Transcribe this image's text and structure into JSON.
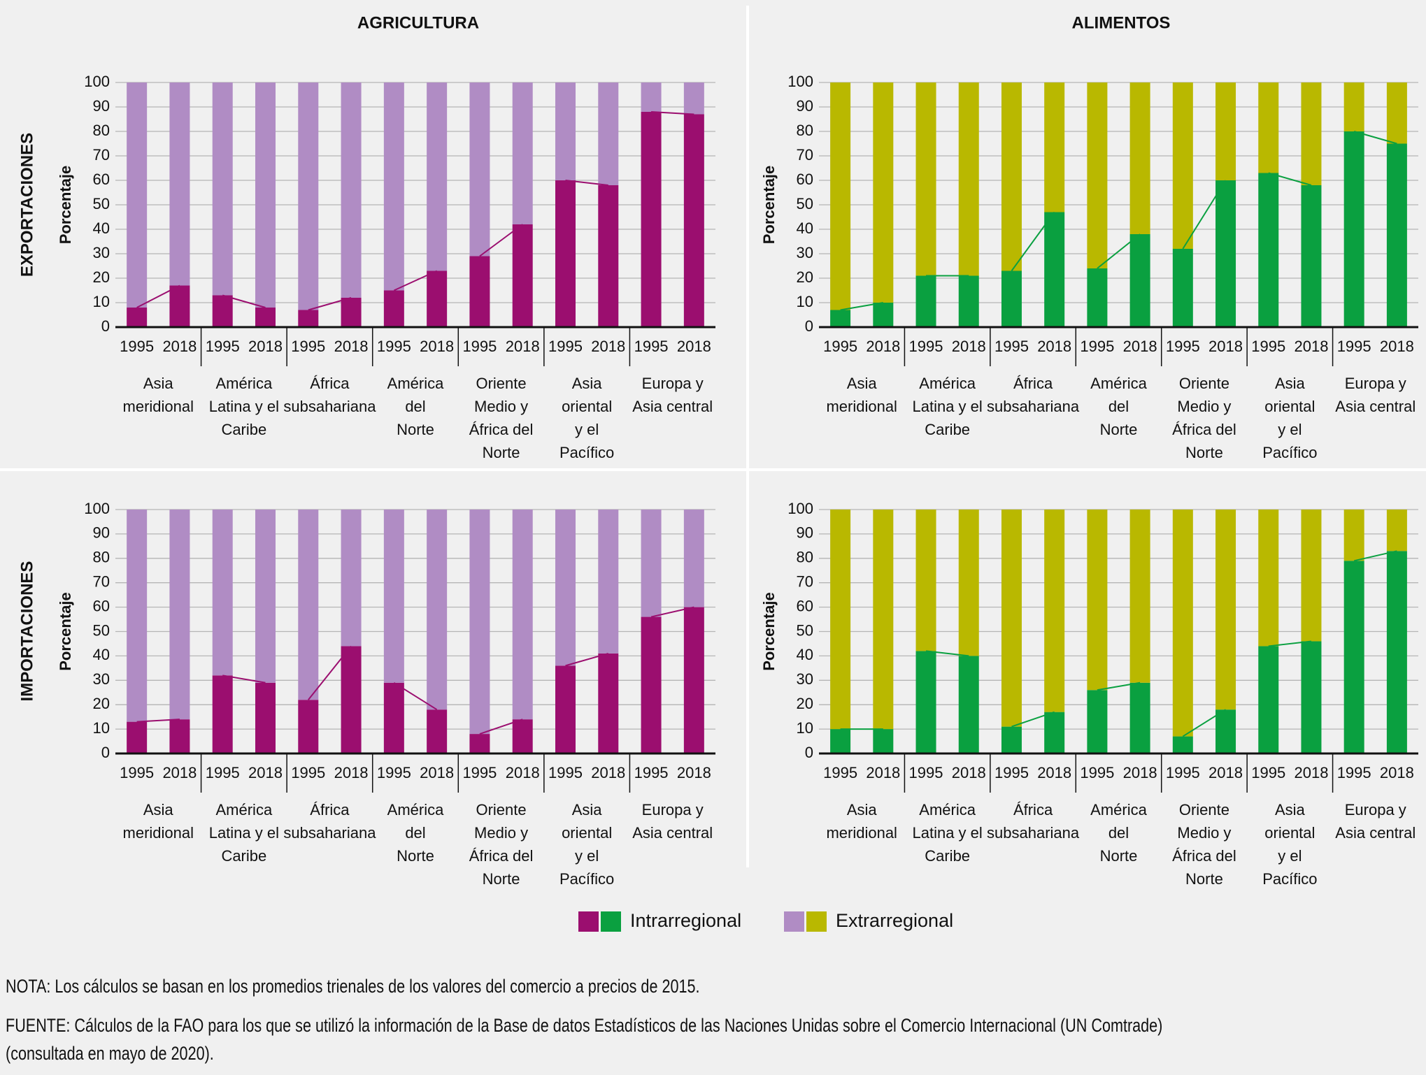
{
  "column_titles": [
    "AGRICULTURA",
    "ALIMENTOS"
  ],
  "row_titles": [
    "EXPORTACIONES",
    "IMPORTACIONES"
  ],
  "legend": {
    "labels": [
      "Intrarregional",
      "Extrarregional"
    ]
  },
  "note": "NOTA: Los cálculos se basan en los promedios trienales de los valores del comercio a precios de 2015.",
  "source": [
    "FUENTE: Cálculos de la FAO para los que se utilizó la información de la Base de datos Estadísticos de las Naciones Unidas sobre el Comercio Internacional (UN Comtrade)",
    "(consultada en mayo de 2020)."
  ],
  "chart_data": [
    {
      "type": "stacked_bar",
      "ylabel": "Porcentaje",
      "categories": [
        "1995",
        "2018",
        "1995",
        "2018",
        "1995",
        "2018",
        "1995",
        "2018",
        "1995",
        "2018",
        "1995",
        "2018",
        "1995",
        "2018"
      ],
      "groups": [
        "Asia\nmeridional",
        "América\nLatina y el\nCaribe",
        "África\nsubsahariana",
        "América\ndel\nNorte",
        "Oriente\nMedio y\nÁfrica del\nNorte",
        "Asia\noriental\ny el\nPacífico",
        "Europa y\nAsia central"
      ],
      "ylim": [
        0,
        100
      ],
      "yticks": [
        0,
        10,
        20,
        30,
        40,
        50,
        60,
        70,
        80,
        90,
        100
      ],
      "grid": true,
      "connect_first_series": true,
      "series": [
        {
          "color": "#9b0e6f",
          "values": [
            8,
            17,
            13,
            8,
            7,
            12,
            15,
            23,
            29,
            42,
            60,
            58,
            88,
            87
          ]
        },
        {
          "color": "#b08cc4",
          "values": [
            92,
            83,
            87,
            92,
            93,
            88,
            85,
            77,
            71,
            58,
            40,
            42,
            12,
            13
          ]
        }
      ]
    },
    {
      "type": "stacked_bar",
      "ylabel": "Porcentaje",
      "categories": [
        "1995",
        "2018",
        "1995",
        "2018",
        "1995",
        "2018",
        "1995",
        "2018",
        "1995",
        "2018",
        "1995",
        "2018",
        "1995",
        "2018"
      ],
      "groups": [
        "Asia\nmeridional",
        "América\nLatina y el\nCaribe",
        "África\nsubsahariana",
        "América\ndel\nNorte",
        "Oriente\nMedio y\nÁfrica del\nNorte",
        "Asia\noriental\ny el\nPacífico",
        "Europa y\nAsia central"
      ],
      "ylim": [
        0,
        100
      ],
      "yticks": [
        0,
        10,
        20,
        30,
        40,
        50,
        60,
        70,
        80,
        90,
        100
      ],
      "grid": true,
      "connect_first_series": true,
      "series": [
        {
          "color": "#0aa040",
          "values": [
            7,
            10,
            21,
            21,
            23,
            47,
            24,
            38,
            32,
            60,
            63,
            58,
            80,
            75
          ]
        },
        {
          "color": "#b9b800",
          "values": [
            93,
            90,
            79,
            79,
            77,
            53,
            76,
            62,
            68,
            40,
            37,
            42,
            20,
            25
          ]
        }
      ]
    },
    {
      "type": "stacked_bar",
      "ylabel": "Porcentaje",
      "categories": [
        "1995",
        "2018",
        "1995",
        "2018",
        "1995",
        "2018",
        "1995",
        "2018",
        "1995",
        "2018",
        "1995",
        "2018",
        "1995",
        "2018"
      ],
      "groups": [
        "Asia\nmeridional",
        "América\nLatina y el\nCaribe",
        "África\nsubsahariana",
        "América\ndel\nNorte",
        "Oriente\nMedio y\nÁfrica del\nNorte",
        "Asia\noriental\ny el\nPacífico",
        "Europa y\nAsia central"
      ],
      "ylim": [
        0,
        100
      ],
      "yticks": [
        0,
        10,
        20,
        30,
        40,
        50,
        60,
        70,
        80,
        90,
        100
      ],
      "grid": true,
      "connect_first_series": true,
      "series": [
        {
          "color": "#9b0e6f",
          "values": [
            13,
            14,
            32,
            29,
            22,
            44,
            29,
            18,
            8,
            14,
            36,
            41,
            56,
            60
          ]
        },
        {
          "color": "#b08cc4",
          "values": [
            87,
            86,
            68,
            71,
            78,
            56,
            71,
            82,
            92,
            86,
            64,
            59,
            44,
            40
          ]
        }
      ]
    },
    {
      "type": "stacked_bar",
      "ylabel": "Porcentaje",
      "categories": [
        "1995",
        "2018",
        "1995",
        "2018",
        "1995",
        "2018",
        "1995",
        "2018",
        "1995",
        "2018",
        "1995",
        "2018",
        "1995",
        "2018"
      ],
      "groups": [
        "Asia\nmeridional",
        "América\nLatina y el\nCaribe",
        "África\nsubsahariana",
        "América\ndel\nNorte",
        "Oriente\nMedio y\nÁfrica del\nNorte",
        "Asia\noriental\ny el\nPacífico",
        "Europa y\nAsia central"
      ],
      "ylim": [
        0,
        100
      ],
      "yticks": [
        0,
        10,
        20,
        30,
        40,
        50,
        60,
        70,
        80,
        90,
        100
      ],
      "grid": true,
      "connect_first_series": true,
      "series": [
        {
          "color": "#0aa040",
          "values": [
            10,
            10,
            42,
            40,
            11,
            17,
            26,
            29,
            7,
            18,
            44,
            46,
            79,
            83
          ]
        },
        {
          "color": "#b9b800",
          "values": [
            90,
            90,
            58,
            60,
            89,
            83,
            74,
            71,
            93,
            82,
            56,
            54,
            21,
            17
          ]
        }
      ]
    }
  ]
}
